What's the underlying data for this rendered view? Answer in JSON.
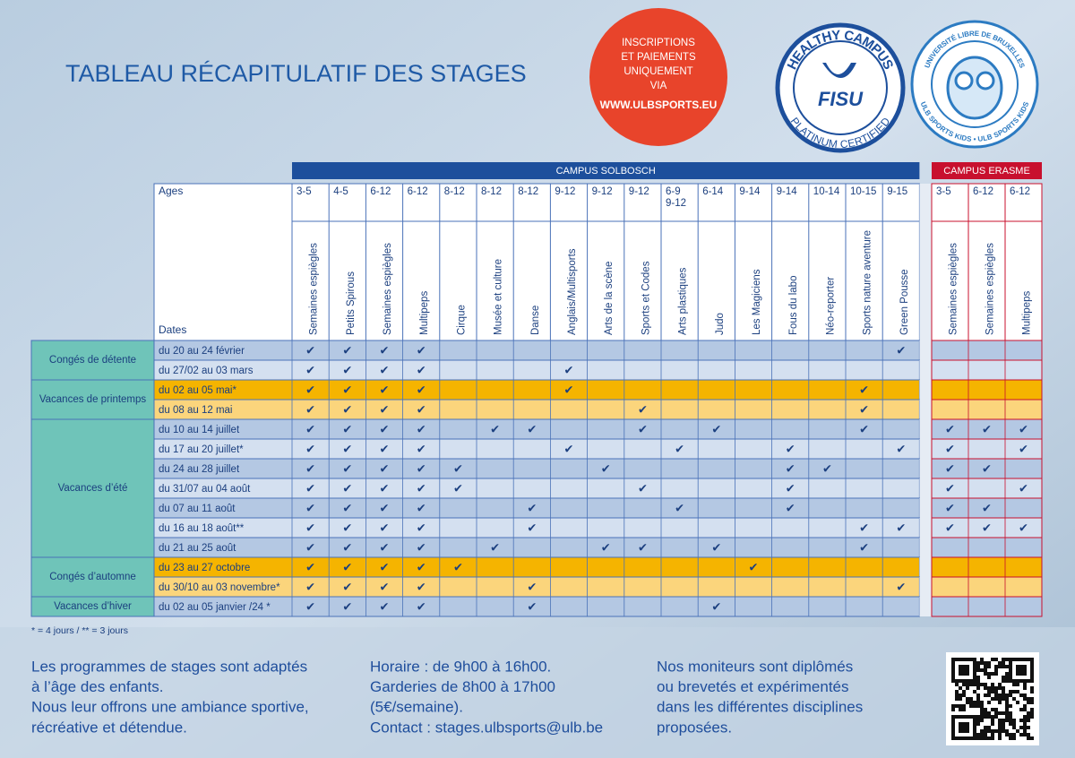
{
  "header": {
    "title": "TABLEAU RÉCAPITULATIF DES STAGES",
    "notice": [
      "INSCRIPTIONS",
      "ET PAIEMENTS",
      "UNIQUEMENT",
      "VIA",
      "WWW.ULBSPORTS.EU"
    ],
    "fisu_logo": {
      "top": "HEALTHY CAMPUS",
      "center": "FISU",
      "bottom": "PLATINUM CERTIFIED"
    },
    "ulb_logo": {
      "top": "UNIVERSITÉ LIBRE DE BRUXELLES",
      "bottom": "ULB SPORTS KIDS • ULB SPORTS KIDS"
    }
  },
  "table": {
    "ages_label": "Ages",
    "dates_label": "Dates",
    "campuses": [
      {
        "name": "CAMPUS SOLBOSCH",
        "columns": [
          {
            "age": [
              "3-5"
            ],
            "name": "Semaines espiègles"
          },
          {
            "age": [
              "4-5"
            ],
            "name": "Petits Spirous"
          },
          {
            "age": [
              "6-12"
            ],
            "name": "Semaines espiègles"
          },
          {
            "age": [
              "6-12"
            ],
            "name": "Multipeps"
          },
          {
            "age": [
              "8-12"
            ],
            "name": "Cirque"
          },
          {
            "age": [
              "8-12"
            ],
            "name": "Musée et culture"
          },
          {
            "age": [
              "8-12"
            ],
            "name": "Danse"
          },
          {
            "age": [
              "9-12"
            ],
            "name": "Anglais/Multisports"
          },
          {
            "age": [
              "9-12"
            ],
            "name": "Arts de la scène"
          },
          {
            "age": [
              "9-12"
            ],
            "name": "Sports et Codes"
          },
          {
            "age": [
              "6-9",
              "9-12"
            ],
            "name": "Arts plastiques"
          },
          {
            "age": [
              "6-14"
            ],
            "name": "Judo"
          },
          {
            "age": [
              "9-14"
            ],
            "name": "Les Magiciens"
          },
          {
            "age": [
              "9-14"
            ],
            "name": "Fous du labo"
          },
          {
            "age": [
              "10-14"
            ],
            "name": "Néo-reporter"
          },
          {
            "age": [
              "10-15"
            ],
            "name": "Sports nature aventure"
          },
          {
            "age": [
              "9-15"
            ],
            "name": "Green Pousse"
          }
        ]
      },
      {
        "name": "CAMPUS ERASME",
        "columns": [
          {
            "age": [
              "3-5"
            ],
            "name": "Semaines espiègles"
          },
          {
            "age": [
              "6-12"
            ],
            "name": "Semaines espiègles"
          },
          {
            "age": [
              "6-12"
            ],
            "name": "Multipeps"
          }
        ]
      }
    ],
    "periods": [
      {
        "name": "Congés de détente",
        "rows": [
          {
            "dates": "du 20 au 24 février",
            "cells": [
              "✔",
              "✔",
              "✔",
              "✔",
              null,
              null,
              null,
              null,
              null,
              null,
              null,
              null,
              null,
              null,
              null,
              null,
              "✔",
              null,
              null,
              null
            ]
          },
          {
            "dates": "du 27/02 au 03 mars",
            "cells": [
              "✔",
              "✔",
              "✔",
              "✔",
              null,
              null,
              null,
              "✔",
              null,
              null,
              null,
              null,
              null,
              null,
              null,
              null,
              null,
              null,
              null,
              null
            ]
          }
        ]
      },
      {
        "name": "Vacances de printemps",
        "rows": [
          {
            "dates": "du 02 au 05 mai*",
            "cells": [
              "✔",
              "✔",
              "✔",
              "✔",
              null,
              null,
              null,
              "✔",
              null,
              null,
              null,
              null,
              null,
              null,
              null,
              "✔",
              null,
              null,
              null,
              null
            ]
          },
          {
            "dates": "du 08 au 12 mai",
            "cells": [
              "✔",
              "✔",
              "✔",
              "✔",
              null,
              null,
              null,
              null,
              null,
              "✔",
              null,
              null,
              null,
              null,
              null,
              "✔",
              null,
              null,
              null,
              null
            ]
          }
        ]
      },
      {
        "name": "Vacances d’été",
        "rows": [
          {
            "dates": "du 10 au 14 juillet",
            "cells": [
              "✔",
              "✔",
              "✔",
              "✔",
              null,
              "✔",
              "✔",
              null,
              null,
              "✔",
              null,
              "✔",
              null,
              null,
              null,
              "✔",
              null,
              "✔",
              "✔",
              "✔"
            ]
          },
          {
            "dates": "du 17 au 20 juillet*",
            "cells": [
              "✔",
              "✔",
              "✔",
              "✔",
              null,
              null,
              null,
              "✔",
              null,
              null,
              "✔",
              null,
              null,
              "✔",
              null,
              null,
              "✔",
              "✔",
              null,
              "✔"
            ]
          },
          {
            "dates": "du 24 au 28 juillet",
            "cells": [
              "✔",
              "✔",
              "✔",
              "✔",
              "✔",
              null,
              null,
              null,
              "✔",
              null,
              null,
              null,
              null,
              "✔",
              "✔",
              null,
              null,
              "✔",
              "✔",
              null
            ]
          },
          {
            "dates": "du 31/07 au 04 août",
            "cells": [
              "✔",
              "✔",
              "✔",
              "✔",
              "✔",
              null,
              null,
              null,
              null,
              "✔",
              null,
              null,
              null,
              "✔",
              null,
              null,
              null,
              "✔",
              null,
              "✔"
            ]
          },
          {
            "dates": "du 07 au 11 août",
            "cells": [
              "✔",
              "✔",
              "✔",
              "✔",
              null,
              null,
              "✔",
              null,
              null,
              null,
              "✔",
              null,
              null,
              "✔",
              null,
              null,
              null,
              "✔",
              "✔",
              null
            ]
          },
          {
            "dates": "du 16 au 18 août**",
            "cells": [
              "✔",
              "✔",
              "✔",
              "✔",
              null,
              null,
              "✔",
              null,
              null,
              null,
              null,
              null,
              null,
              null,
              null,
              "✔",
              "✔",
              "✔",
              "✔",
              "✔"
            ]
          },
          {
            "dates": "du 21 au 25 août",
            "cells": [
              "✔",
              "✔",
              "✔",
              "✔",
              null,
              "✔",
              null,
              null,
              "✔",
              "✔",
              null,
              "✔",
              null,
              null,
              null,
              "✔",
              null,
              null,
              null,
              null
            ]
          }
        ]
      },
      {
        "name": "Congés d’automne",
        "rows": [
          {
            "dates": "du 23 au 27 octobre",
            "cells": [
              "✔",
              "✔",
              "✔",
              "✔",
              "✔",
              null,
              null,
              null,
              null,
              null,
              null,
              null,
              "✔",
              null,
              null,
              null,
              null,
              null,
              null,
              null
            ]
          },
          {
            "dates": "du 30/10 au 03 novembre*",
            "cells": [
              "✔",
              "✔",
              "✔",
              "✔",
              null,
              null,
              "✔",
              null,
              null,
              null,
              null,
              null,
              null,
              null,
              null,
              null,
              "✔",
              null,
              null,
              null
            ]
          }
        ]
      },
      {
        "name": "Vacances d’hiver",
        "rows": [
          {
            "dates": "du 02 au 05 janvier /24 *",
            "cells": [
              "✔",
              "✔",
              "✔",
              "✔",
              null,
              null,
              "✔",
              null,
              null,
              null,
              null,
              "✔",
              null,
              null,
              null,
              null,
              null,
              null,
              null,
              null
            ]
          }
        ]
      }
    ],
    "footnote": "* = 4 jours / ** = 3 jours"
  },
  "info": [
    [
      "Les programmes de stages sont adaptés",
      "à l’âge des enfants.",
      "Nous leur offrons une ambiance sportive,",
      "récréative et détendue."
    ],
    [
      "Horaire : de 9h00 à 16h00.",
      "Garderies de 8h00 à 17h00",
      "(5€/semaine).",
      "Contact : stages.ulbsports@ulb.be"
    ],
    [
      "Nos moniteurs sont diplômés",
      "ou brevetés et expérimentés",
      "dans les différentes disciplines",
      "proposées."
    ]
  ]
}
